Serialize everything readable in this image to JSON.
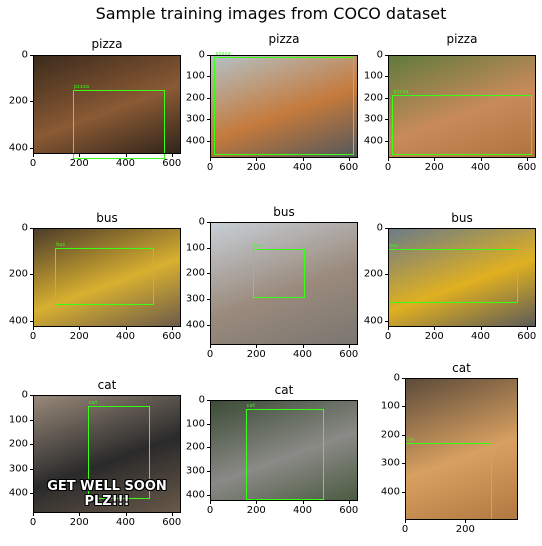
{
  "title": "Sample training images from COCO dataset",
  "panels": [
    {
      "title": "pizza",
      "label": "pizza",
      "xticks": [
        "0",
        "200",
        "400",
        "600"
      ],
      "yticks": [
        "0",
        "200",
        "400"
      ],
      "bg": [
        "#3a2a1c",
        "#8a5a34",
        "#2e241a"
      ],
      "caption": ""
    },
    {
      "title": "pizza",
      "label": "pizza",
      "xticks": [
        "0",
        "200",
        "400",
        "600"
      ],
      "yticks": [
        "0",
        "100",
        "200",
        "300",
        "400"
      ],
      "bg": [
        "#b4c2c8",
        "#c47a3c",
        "#50565c"
      ],
      "caption": ""
    },
    {
      "title": "pizza",
      "label": "pizza",
      "xticks": [
        "0",
        "200",
        "400",
        "600"
      ],
      "yticks": [
        "0",
        "100",
        "200",
        "300",
        "400"
      ],
      "bg": [
        "#5e7a3c",
        "#c88a5a",
        "#b0723c"
      ],
      "caption": ""
    },
    {
      "title": "bus",
      "label": "bus",
      "xticks": [
        "0",
        "200",
        "400",
        "600"
      ],
      "yticks": [
        "0",
        "200",
        "400"
      ],
      "bg": [
        "#4a3a2a",
        "#d8b030",
        "#6a5a4a"
      ],
      "caption": ""
    },
    {
      "title": "bus",
      "label": "bus",
      "xticks": [
        "0",
        "200",
        "400",
        "600"
      ],
      "yticks": [
        "0",
        "100",
        "200",
        "300",
        "400"
      ],
      "bg": [
        "#c8d0d8",
        "#9a8a7c",
        "#7a7670"
      ],
      "caption": ""
    },
    {
      "title": "bus",
      "label": "bus",
      "xticks": [
        "0",
        "200",
        "400",
        "600"
      ],
      "yticks": [
        "0",
        "200",
        "400"
      ],
      "bg": [
        "#6a7a8a",
        "#e0b020",
        "#5a5a5a"
      ],
      "caption": ""
    },
    {
      "title": "cat",
      "label": "cat",
      "xticks": [
        "0",
        "200",
        "400",
        "600"
      ],
      "yticks": [
        "0",
        "100",
        "200",
        "300",
        "400"
      ],
      "bg": [
        "#9a8a7a",
        "#2a2a2a",
        "#6a5a4a"
      ],
      "caption": "GET WELL SOON PLZ!!!"
    },
    {
      "title": "cat",
      "label": "cat",
      "xticks": [
        "0",
        "200",
        "400",
        "600"
      ],
      "yticks": [
        "0",
        "100",
        "200",
        "300",
        "400"
      ],
      "bg": [
        "#3a4a34",
        "#8a8a86",
        "#4a5a40"
      ],
      "caption": ""
    },
    {
      "title": "cat",
      "label": "cat",
      "xticks": [
        "0",
        "200"
      ],
      "yticks": [
        "0",
        "100",
        "200",
        "300",
        "400"
      ],
      "bg": [
        "#5a4a3a",
        "#d8a060",
        "#b07840"
      ],
      "caption": ""
    }
  ]
}
